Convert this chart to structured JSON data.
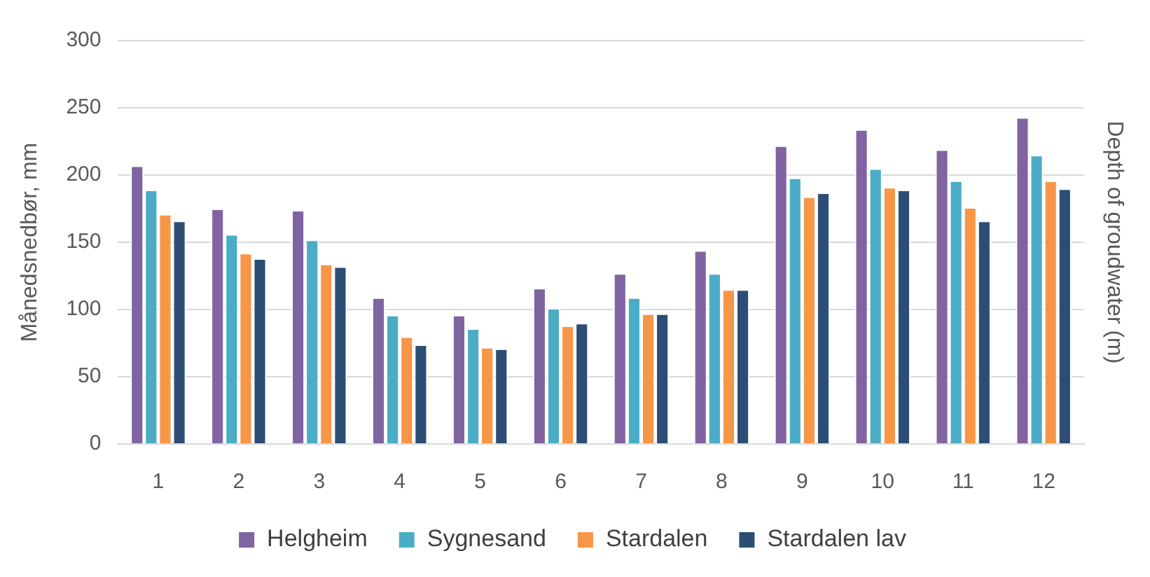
{
  "chart_data": {
    "type": "bar",
    "ylabel": "Månedsnedbør, mm",
    "y2label": "Depth of groudwater (m)",
    "categories": [
      "1",
      "2",
      "3",
      "4",
      "5",
      "6",
      "7",
      "8",
      "9",
      "10",
      "11",
      "12"
    ],
    "series": [
      {
        "name": "Helgheim",
        "color": "#8064a2",
        "values": [
          207,
          175,
          174,
          109,
          96,
          116,
          127,
          144,
          222,
          234,
          219,
          243
        ]
      },
      {
        "name": "Sygnesand",
        "color": "#4bacc6",
        "values": [
          189,
          156,
          152,
          96,
          86,
          101,
          109,
          127,
          198,
          205,
          196,
          215
        ]
      },
      {
        "name": "Stardalen",
        "color": "#f79646",
        "values": [
          171,
          142,
          134,
          80,
          72,
          88,
          97,
          115,
          184,
          191,
          176,
          196
        ]
      },
      {
        "name": "Stardalen lav",
        "color": "#2c4d75",
        "values": [
          166,
          138,
          132,
          74,
          71,
          90,
          97,
          115,
          187,
          189,
          166,
          190
        ]
      }
    ],
    "ylim": [
      0,
      300
    ],
    "yticks": [
      0,
      50,
      100,
      150,
      200,
      250,
      300
    ],
    "grid": "y",
    "legend": "bottom"
  }
}
